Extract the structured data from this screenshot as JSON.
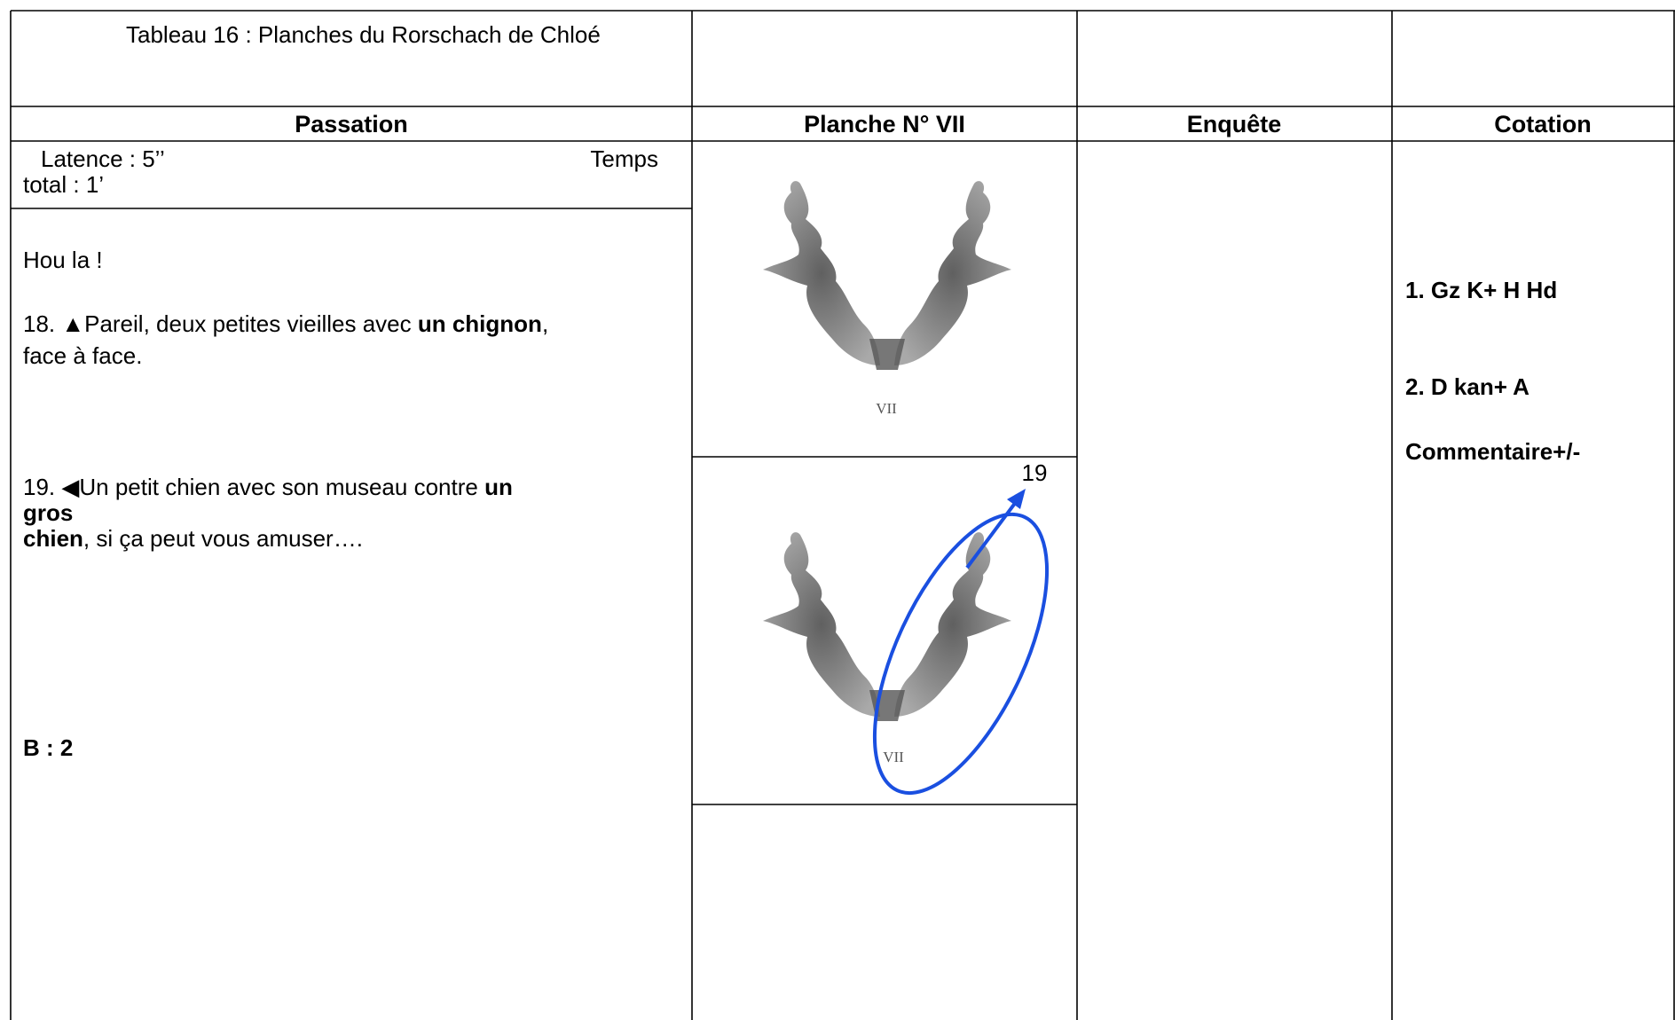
{
  "header": {
    "title": "Tableau 16 : Planches du Rorschach de Chloé"
  },
  "table": {
    "headers": [
      "Passation",
      "Planche N° VII",
      "Enquête",
      "Cotation"
    ],
    "passation": {
      "latence": "Latence : 5’’",
      "temps": "Temps",
      "total": "total : 1’",
      "lines": [
        [
          {
            "text": "Hou la !",
            "bold": false
          }
        ],
        [
          {
            "text": "18. ▲Pareil, deux petites vieilles avec ",
            "bold": false
          },
          {
            "text": "un chignon",
            "bold": true
          },
          {
            "text": ",",
            "bold": false
          }
        ],
        [
          {
            "text": "face à face.",
            "bold": false
          }
        ],
        [
          {
            "text": "19. ◀Un petit chien avec son museau contre ",
            "bold": false
          },
          {
            "text": "un",
            "bold": true
          }
        ],
        [
          {
            "text": "gros",
            "bold": true
          }
        ],
        [
          {
            "text": "chien",
            "bold": true
          },
          {
            "text": ", si ça peut vous amuser….",
            "bold": false
          }
        ]
      ],
      "score": "B : 2"
    },
    "plates": [
      {
        "label": "VII"
      },
      {
        "label": "VII",
        "annotation": "19"
      }
    ],
    "cotation": [
      "1. Gz K+ H Hd",
      "2. D kan+ A",
      "Commentaire+/-"
    ]
  }
}
